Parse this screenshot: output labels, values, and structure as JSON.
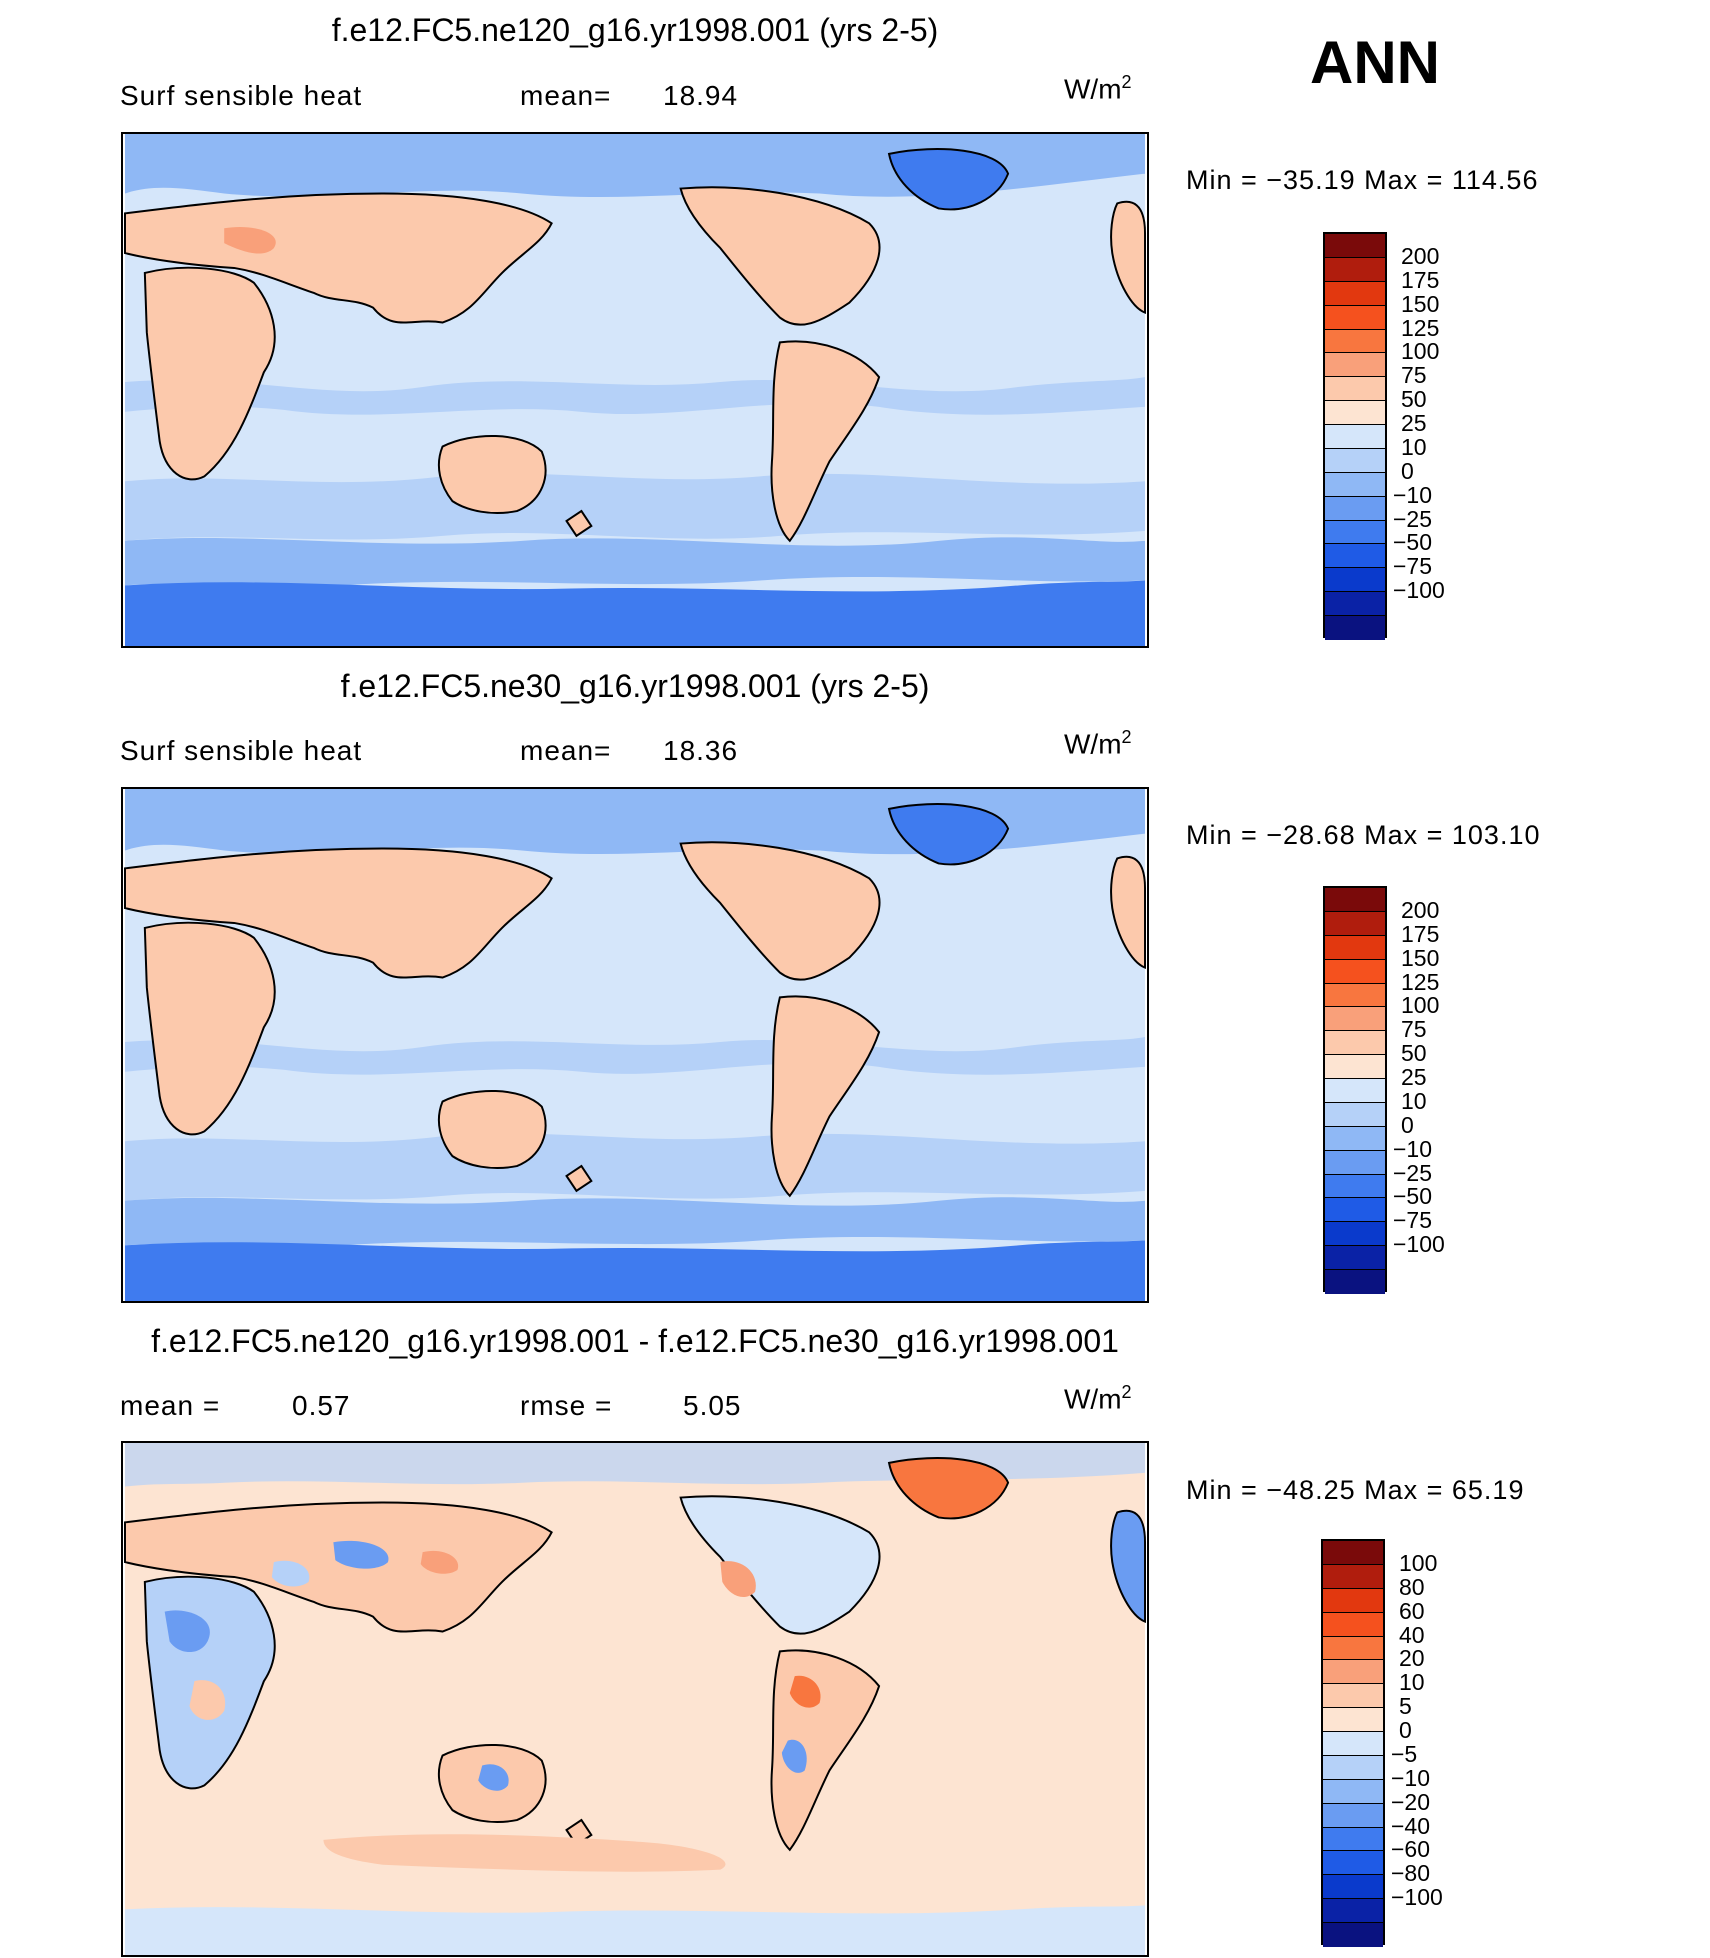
{
  "header": {
    "season": "ANN"
  },
  "panels": [
    {
      "title": "f.e12.FC5.ne120_g16.yr1998.001 (yrs 2-5)",
      "left_text": "Surf sensible heat",
      "stat1_label": "mean=",
      "stat1_value": "18.94",
      "stat2_label": "",
      "stat2_value": "",
      "units_base": "W/m",
      "units_exp": "2",
      "minmax": "Min = −35.19 Max = 114.56",
      "cbar_colors": [
        "#7a0a0a",
        "#b01d0d",
        "#e2380f",
        "#f5511e",
        "#f8763f",
        "#f9a07a",
        "#fcc9ac",
        "#fde4d2",
        "#d5e6fa",
        "#b5d1f8",
        "#8fb8f5",
        "#6a9cf2",
        "#3f7bef",
        "#1f5be6",
        "#0a3acc",
        "#0a22a6",
        "#0a1280"
      ],
      "cbar_labels": [
        "200",
        "175",
        "150",
        "125",
        "100",
        "75",
        "50",
        "25",
        "10",
        "0",
        "−10",
        "−25",
        "−50",
        "−75",
        "−100"
      ]
    },
    {
      "title": "f.e12.FC5.ne30_g16.yr1998.001 (yrs 2-5)",
      "left_text": "Surf sensible heat",
      "stat1_label": "mean=",
      "stat1_value": "18.36",
      "stat2_label": "",
      "stat2_value": "",
      "units_base": "W/m",
      "units_exp": "2",
      "minmax": "Min = −28.68 Max = 103.10",
      "cbar_colors": [
        "#7a0a0a",
        "#b01d0d",
        "#e2380f",
        "#f5511e",
        "#f8763f",
        "#f9a07a",
        "#fcc9ac",
        "#fde4d2",
        "#d5e6fa",
        "#b5d1f8",
        "#8fb8f5",
        "#6a9cf2",
        "#3f7bef",
        "#1f5be6",
        "#0a3acc",
        "#0a22a6",
        "#0a1280"
      ],
      "cbar_labels": [
        "200",
        "175",
        "150",
        "125",
        "100",
        "75",
        "50",
        "25",
        "10",
        "0",
        "−10",
        "−25",
        "−50",
        "−75",
        "−100"
      ]
    },
    {
      "title": "f.e12.FC5.ne120_g16.yr1998.001 - f.e12.FC5.ne30_g16.yr1998.001",
      "left_text": "",
      "stat1_label": "mean =",
      "stat1_value": "0.57",
      "stat2_label": "rmse =",
      "stat2_value": "5.05",
      "units_base": "W/m",
      "units_exp": "2",
      "minmax": "Min = −48.25 Max =  65.19",
      "cbar_colors": [
        "#7a0a0a",
        "#b01d0d",
        "#e2380f",
        "#f5511e",
        "#f8763f",
        "#f9a07a",
        "#fcc9ac",
        "#fde4d2",
        "#d5e6fa",
        "#b5d1f8",
        "#8fb8f5",
        "#6a9cf2",
        "#3f7bef",
        "#1f5be6",
        "#0a3acc",
        "#0a22a6",
        "#0a1280"
      ],
      "cbar_labels": [
        "100",
        "80",
        "60",
        "40",
        "20",
        "10",
        "5",
        "0",
        "−5",
        "−10",
        "−20",
        "−40",
        "−60",
        "−80",
        "−100"
      ]
    }
  ],
  "map_colors": {
    "ocean_main": "#d5e6fa",
    "ocean_band": "#b5d1f8",
    "ocean_cool": "#8fb8f5",
    "antarctic": "#3f7bef",
    "land_warm": "#fcc9ac",
    "land_hot": "#f9a07a",
    "diff_ocean": "#fde4d2",
    "diff_blue": "#b5d1f8",
    "diff_blue_dark": "#6a9cf2",
    "diff_red": "#f8763f"
  }
}
